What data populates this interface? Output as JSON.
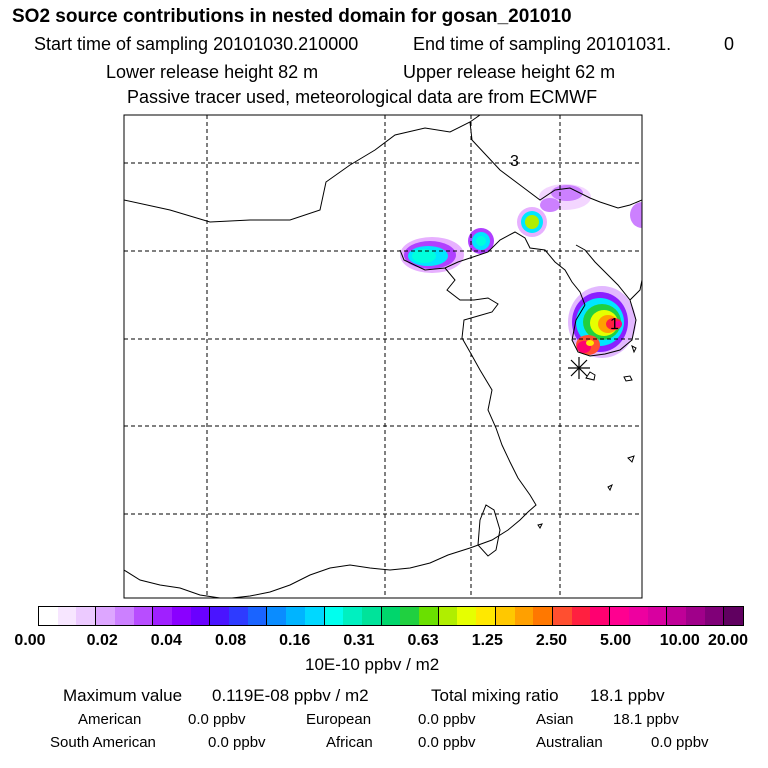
{
  "title": "SO2 source contributions in nested domain for gosan_201010",
  "sampling": {
    "start_label": "Start time of sampling 20101030.210000",
    "end_label": "End time of sampling 20101031.",
    "end_suffix": "0"
  },
  "release": {
    "lower_label": "Lower release height   82 m",
    "upper_label": "Upper release height   62 m"
  },
  "note": "Passive tracer used, meteorological data are from ECMWF",
  "map": {
    "markers": [
      "3",
      "1"
    ],
    "colors": {
      "land": "#ffffff",
      "coast": "#000000",
      "grid": "#000000",
      "plume_low": "#cc33ff",
      "plume_mid": "#00ffdd",
      "plume_high": "#ffff00",
      "plume_peak": "#ff0066"
    }
  },
  "scale": {
    "colors": [
      "#ffffff",
      "#f7e6ff",
      "#eccaff",
      "#dda6ff",
      "#cc80ff",
      "#b84dff",
      "#a020ff",
      "#8a00ff",
      "#6a00ff",
      "#4a14ff",
      "#2e3bff",
      "#1a64ff",
      "#0a8cff",
      "#00b4ff",
      "#00d8ff",
      "#00ffee",
      "#00f0c0",
      "#00e39a",
      "#00d66c",
      "#20d040",
      "#6ae000",
      "#b0ee00",
      "#e6ff00",
      "#ffe800",
      "#ffc800",
      "#ffa000",
      "#ff7800",
      "#ff4f30",
      "#ff2040",
      "#ff0070",
      "#ff0090",
      "#ee00a0",
      "#d800a0",
      "#c00098",
      "#a0008a",
      "#800078",
      "#600060"
    ],
    "ticks": [
      "0.00",
      "0.02",
      "0.04",
      "0.08",
      "0.16",
      "0.31",
      "0.63",
      "1.25",
      "2.50",
      "5.00",
      "10.00",
      "20.00"
    ],
    "units": "10E-10 ppbv / m2"
  },
  "summary": {
    "max_label": "Maximum value",
    "max_value": "0.119E-08 ppbv / m2",
    "total_label": "Total mixing ratio",
    "total_value": "18.1 ppbv"
  },
  "regions": [
    {
      "name": "American",
      "value": "0.0 ppbv"
    },
    {
      "name": "European",
      "value": "0.0 ppbv"
    },
    {
      "name": "Asian",
      "value": "18.1 ppbv"
    },
    {
      "name": "South American",
      "value": "0.0 ppbv"
    },
    {
      "name": "African",
      "value": "0.0 ppbv"
    },
    {
      "name": "Australian",
      "value": "0.0 ppbv"
    }
  ]
}
